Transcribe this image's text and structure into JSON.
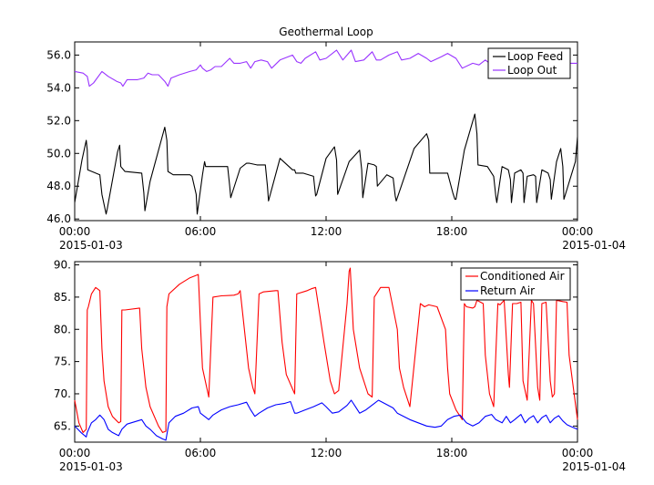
{
  "chart_data": [
    {
      "type": "line",
      "title": "Geothermal Loop",
      "xlabel": "",
      "ylabel": "",
      "ylim": [
        45.9,
        56.8
      ],
      "yticks": [
        "46.0",
        "48.0",
        "50.0",
        "52.0",
        "54.0",
        "56.0"
      ],
      "ytick_values": [
        46,
        48,
        50,
        52,
        54,
        56
      ],
      "xlim_hours": [
        0,
        24
      ],
      "xticks": [
        {
          "hour": 0,
          "time": "00:00",
          "date": "2015-01-03"
        },
        {
          "hour": 6,
          "time": "06:00",
          "date": ""
        },
        {
          "hour": 12,
          "time": "12:00",
          "date": ""
        },
        {
          "hour": 18,
          "time": "18:00",
          "date": ""
        },
        {
          "hour": 24,
          "time": "00:00",
          "date": "2015-01-04"
        }
      ],
      "legend_position": "top-right",
      "grid": false,
      "series": [
        {
          "name": "Loop Feed",
          "color": "#000000",
          "x": [
            0.0,
            0.35,
            0.55,
            0.6,
            0.62,
            1.2,
            1.3,
            1.5,
            1.55,
            2.05,
            2.15,
            2.2,
            2.4,
            3.2,
            3.3,
            3.35,
            3.6,
            4.3,
            4.4,
            4.45,
            4.7,
            5.5,
            5.6,
            5.8,
            5.85,
            6.1,
            6.2,
            6.25,
            6.6,
            7.3,
            7.4,
            7.45,
            7.9,
            8.2,
            8.3,
            8.35,
            8.7,
            9.1,
            9.2,
            9.25,
            9.8,
            10.4,
            10.5,
            10.55,
            10.9,
            11.4,
            11.5,
            11.55,
            12.0,
            12.4,
            12.5,
            12.55,
            13.1,
            13.6,
            13.7,
            13.75,
            14.0,
            14.3,
            14.4,
            14.45,
            14.9,
            15.2,
            15.3,
            15.35,
            16.2,
            16.8,
            16.9,
            16.95,
            17.8,
            18.05,
            18.15,
            18.2,
            18.6,
            19.1,
            19.2,
            19.25,
            19.7,
            20.0,
            20.1,
            20.15,
            20.4,
            20.7,
            20.8,
            20.85,
            21.0,
            21.3,
            21.4,
            21.45,
            21.6,
            21.9,
            22.0,
            22.05,
            22.3,
            22.6,
            22.7,
            22.75,
            23.0,
            23.2,
            23.3,
            23.35,
            23.9,
            24.0
          ],
          "y": [
            47.0,
            49.6,
            50.8,
            50.2,
            49.0,
            48.7,
            47.5,
            46.3,
            46.6,
            50.1,
            50.5,
            49.2,
            48.9,
            48.8,
            47.6,
            46.5,
            48.3,
            51.6,
            50.8,
            48.9,
            48.7,
            48.7,
            48.6,
            47.5,
            46.3,
            48.7,
            49.5,
            49.2,
            49.2,
            49.2,
            48.0,
            47.3,
            49.1,
            49.4,
            49.4,
            49.4,
            49.3,
            49.3,
            48.0,
            47.1,
            49.7,
            49.0,
            49.0,
            48.8,
            48.8,
            48.6,
            47.4,
            47.5,
            49.7,
            50.4,
            49.6,
            47.5,
            49.5,
            50.2,
            49.0,
            47.3,
            49.4,
            49.3,
            49.2,
            48.0,
            48.7,
            48.5,
            47.4,
            47.1,
            50.3,
            51.2,
            50.8,
            48.8,
            48.8,
            47.6,
            47.2,
            47.2,
            50.2,
            52.4,
            51.2,
            49.3,
            49.2,
            48.6,
            47.4,
            47.0,
            49.2,
            49.0,
            48.4,
            47.0,
            48.8,
            49.0,
            48.8,
            47.0,
            48.6,
            48.7,
            48.6,
            47.0,
            49.0,
            48.8,
            48.4,
            47.2,
            49.5,
            50.3,
            49.2,
            47.2,
            49.5,
            51.0
          ]
        },
        {
          "name": "Loop Out",
          "color": "#9933ff",
          "x": [
            0.0,
            0.4,
            0.6,
            0.7,
            0.9,
            1.3,
            1.4,
            1.6,
            2.0,
            2.2,
            2.3,
            2.5,
            3.0,
            3.3,
            3.5,
            3.7,
            4.0,
            4.3,
            4.45,
            4.6,
            5.0,
            5.5,
            5.8,
            6.0,
            6.1,
            6.3,
            6.5,
            6.7,
            7.0,
            7.4,
            7.6,
            7.9,
            8.2,
            8.4,
            8.6,
            8.9,
            9.2,
            9.4,
            9.8,
            10.4,
            10.6,
            10.8,
            11.0,
            11.5,
            11.7,
            12.0,
            12.4,
            12.5,
            12.8,
            13.2,
            13.4,
            13.8,
            14.2,
            14.4,
            14.6,
            15.0,
            15.4,
            15.6,
            16.0,
            16.4,
            16.8,
            17.0,
            17.5,
            17.8,
            18.2,
            18.5,
            19.0,
            19.3,
            19.6,
            20.0,
            20.3,
            20.6,
            21.0,
            21.4,
            21.7,
            22.0,
            22.4,
            22.6,
            23.0,
            23.4,
            23.6,
            24.0
          ],
          "y": [
            55.0,
            54.9,
            54.7,
            54.1,
            54.3,
            55.0,
            54.9,
            54.7,
            54.4,
            54.3,
            54.1,
            54.5,
            54.5,
            54.6,
            54.9,
            54.8,
            54.8,
            54.4,
            54.1,
            54.6,
            54.8,
            55.0,
            55.1,
            55.4,
            55.2,
            55.0,
            55.1,
            55.3,
            55.3,
            55.8,
            55.5,
            55.5,
            55.6,
            55.2,
            55.6,
            55.7,
            55.6,
            55.2,
            55.7,
            56.0,
            55.6,
            55.5,
            55.8,
            56.2,
            55.7,
            55.8,
            56.2,
            56.3,
            55.7,
            56.3,
            55.6,
            55.7,
            56.2,
            55.7,
            55.7,
            56.0,
            56.2,
            55.7,
            55.8,
            56.1,
            55.8,
            55.6,
            55.9,
            56.1,
            55.8,
            55.2,
            55.5,
            55.4,
            55.7,
            55.3,
            55.5,
            55.6,
            55.3,
            55.5,
            55.6,
            55.3,
            55.7,
            55.5,
            55.5,
            55.6,
            55.5,
            55.5
          ]
        }
      ]
    },
    {
      "type": "line",
      "title": "",
      "xlabel": "",
      "ylabel": "",
      "ylim": [
        62.5,
        90.5
      ],
      "yticks": [
        "65.",
        "70.",
        "75.",
        "80.",
        "85.",
        "90."
      ],
      "ytick_values": [
        65,
        70,
        75,
        80,
        85,
        90
      ],
      "xlim_hours": [
        0,
        24
      ],
      "xticks": [
        {
          "hour": 0,
          "time": "00:00",
          "date": "2015-01-03"
        },
        {
          "hour": 6,
          "time": "06:00",
          "date": ""
        },
        {
          "hour": 12,
          "time": "12:00",
          "date": ""
        },
        {
          "hour": 18,
          "time": "18:00",
          "date": ""
        },
        {
          "hour": 24,
          "time": "00:00",
          "date": "2015-01-04"
        }
      ],
      "legend_position": "top-right",
      "grid": false,
      "series": [
        {
          "name": "Conditioned Air",
          "color": "#ff0000",
          "x": [
            0.0,
            0.2,
            0.4,
            0.55,
            0.6,
            0.65,
            0.8,
            1.0,
            1.2,
            1.3,
            1.4,
            1.6,
            1.8,
            2.1,
            2.2,
            2.25,
            2.4,
            3.1,
            3.2,
            3.4,
            3.6,
            4.0,
            4.2,
            4.35,
            4.4,
            4.5,
            5.0,
            5.5,
            5.9,
            6.0,
            6.1,
            6.3,
            6.4,
            6.6,
            7.0,
            7.6,
            7.8,
            7.9,
            8.3,
            8.5,
            8.6,
            8.8,
            9.0,
            9.6,
            9.7,
            9.9,
            10.1,
            10.5,
            10.6,
            11.1,
            11.3,
            11.5,
            11.9,
            12.2,
            12.4,
            12.6,
            13.0,
            13.1,
            13.15,
            13.3,
            13.6,
            14.0,
            14.2,
            14.3,
            14.5,
            14.6,
            15.0,
            15.4,
            15.5,
            15.7,
            16.0,
            16.5,
            16.7,
            16.9,
            17.3,
            17.7,
            17.8,
            17.9,
            18.2,
            18.5,
            18.6,
            18.7,
            19.0,
            19.1,
            19.2,
            19.5,
            19.6,
            19.8,
            20.0,
            20.2,
            20.3,
            20.5,
            20.7,
            20.75,
            20.9,
            21.1,
            21.3,
            21.4,
            21.6,
            21.8,
            21.9,
            22.1,
            22.2,
            22.3,
            22.5,
            22.7,
            22.8,
            22.9,
            23.0,
            23.3,
            23.5,
            23.6,
            24.0
          ],
          "y": [
            69.0,
            65.5,
            64.0,
            64.5,
            83.0,
            83.5,
            85.5,
            86.5,
            86.0,
            77.0,
            72.0,
            68.0,
            66.5,
            65.5,
            65.7,
            83.0,
            83.0,
            83.3,
            77.0,
            71.0,
            68.0,
            65.0,
            64.0,
            64.2,
            83.5,
            85.5,
            87.0,
            88.0,
            88.5,
            81.0,
            74.0,
            71.0,
            69.5,
            85.0,
            85.2,
            85.3,
            85.5,
            86.0,
            74.0,
            71.0,
            70.0,
            85.5,
            85.8,
            86.0,
            86.0,
            78.0,
            73.0,
            70.0,
            85.5,
            86.0,
            86.3,
            86.5,
            78.0,
            72.0,
            70.0,
            70.5,
            84.0,
            89.0,
            89.5,
            80.0,
            74.0,
            70.0,
            69.5,
            85.0,
            86.0,
            86.5,
            86.5,
            80.0,
            74.0,
            71.0,
            68.0,
            84.0,
            83.5,
            83.8,
            83.5,
            80.0,
            74.0,
            70.0,
            67.5,
            66.0,
            84.0,
            83.5,
            83.3,
            83.5,
            84.5,
            84.0,
            76.0,
            70.0,
            68.0,
            84.0,
            83.8,
            84.5,
            73.0,
            71.0,
            84.0,
            84.0,
            84.2,
            72.0,
            69.0,
            84.5,
            84.0,
            71.0,
            69.0,
            84.0,
            84.2,
            72.0,
            69.5,
            70.0,
            84.5,
            84.3,
            84.2,
            76.0,
            66.0
          ]
        },
        {
          "name": "Return Air",
          "color": "#0000ff",
          "x": [
            0.0,
            0.3,
            0.55,
            0.6,
            0.8,
            1.0,
            1.2,
            1.4,
            1.6,
            1.8,
            2.1,
            2.25,
            2.5,
            3.0,
            3.2,
            3.4,
            3.6,
            3.9,
            4.2,
            4.35,
            4.5,
            4.8,
            5.2,
            5.6,
            5.9,
            6.0,
            6.2,
            6.4,
            6.6,
            7.0,
            7.4,
            7.8,
            8.2,
            8.4,
            8.6,
            8.8,
            9.2,
            9.6,
            10.0,
            10.3,
            10.5,
            10.6,
            11.0,
            11.4,
            11.8,
            12.0,
            12.3,
            12.6,
            13.0,
            13.2,
            13.4,
            13.6,
            13.9,
            14.3,
            14.5,
            14.8,
            15.2,
            15.4,
            15.7,
            16.0,
            16.4,
            16.8,
            17.2,
            17.5,
            17.8,
            18.1,
            18.4,
            18.7,
            19.0,
            19.3,
            19.6,
            19.9,
            20.1,
            20.4,
            20.6,
            20.8,
            21.0,
            21.3,
            21.5,
            21.7,
            21.9,
            22.1,
            22.3,
            22.5,
            22.7,
            22.9,
            23.1,
            23.3,
            23.5,
            23.7,
            24.0
          ],
          "y": [
            65.0,
            64.0,
            63.3,
            64.0,
            65.5,
            66.0,
            66.7,
            66.0,
            64.5,
            64.0,
            63.5,
            64.5,
            65.3,
            65.8,
            66.0,
            65.0,
            64.5,
            63.5,
            63.0,
            62.8,
            65.5,
            66.5,
            67.0,
            67.8,
            68.0,
            67.0,
            66.5,
            66.0,
            66.7,
            67.5,
            68.0,
            68.3,
            68.7,
            67.5,
            66.5,
            67.0,
            67.8,
            68.3,
            68.5,
            68.8,
            67.0,
            67.0,
            67.5,
            68.0,
            68.6,
            68.0,
            67.0,
            67.2,
            68.2,
            69.0,
            68.0,
            67.0,
            67.5,
            68.5,
            69.0,
            68.5,
            67.8,
            67.0,
            66.5,
            66.0,
            65.5,
            65.0,
            64.8,
            65.0,
            66.0,
            66.5,
            66.7,
            65.5,
            65.0,
            65.5,
            66.5,
            66.8,
            66.0,
            65.5,
            66.5,
            65.5,
            66.0,
            66.8,
            65.5,
            66.2,
            66.6,
            65.5,
            66.3,
            66.7,
            65.5,
            66.2,
            66.6,
            65.8,
            65.2,
            64.9,
            64.5
          ]
        }
      ]
    }
  ]
}
